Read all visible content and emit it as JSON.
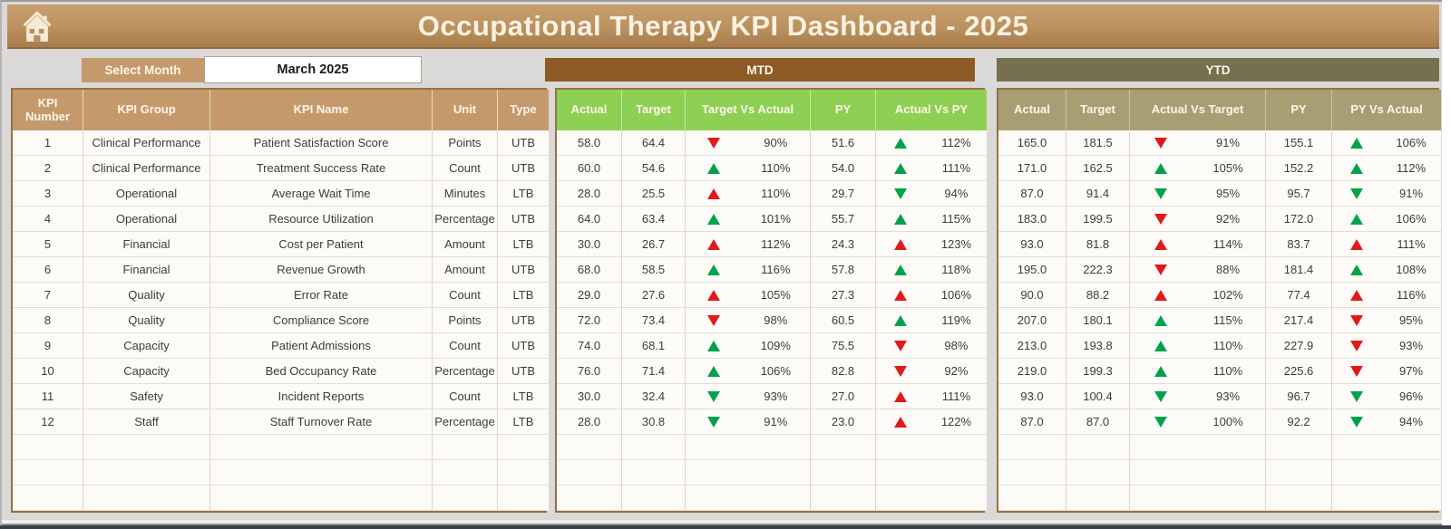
{
  "header": {
    "title": "Occupational Therapy KPI Dashboard - 2025"
  },
  "month_selector": {
    "label": "Select Month",
    "value": "March 2025"
  },
  "sections": {
    "mtd": "MTD",
    "ytd": "YTD"
  },
  "kpi_table_headers": [
    "KPI Number",
    "KPI Group",
    "KPI Name",
    "Unit",
    "Type"
  ],
  "mtd_table_headers": [
    "Actual",
    "Target",
    "Target Vs Actual",
    "PY",
    "Actual Vs PY"
  ],
  "ytd_table_headers": [
    "Actual",
    "Target",
    "Actual Vs Target",
    "PY",
    "PY Vs Actual"
  ],
  "empty_row_count": 3,
  "colors": {
    "banner_tan": "#b98f60",
    "header_tan": "#c49a6c",
    "mtd_brown": "#8d5a26",
    "mtd_green": "#8ed054",
    "ytd_olive_dark": "#75704e",
    "ytd_khaki": "#a89e74",
    "indicator_green": "#00a24b",
    "indicator_red": "#e01a1a",
    "page_gray": "#dbd9d7"
  },
  "rows": [
    {
      "number": "1",
      "group": "Clinical Performance",
      "name": "Patient Satisfaction Score",
      "unit": "Points",
      "type": "UTB",
      "mtd": {
        "actual": "58.0",
        "target": "64.4",
        "target_vs_actual": {
          "dir": "down",
          "color": "red",
          "value": "90%"
        },
        "py": "51.6",
        "actual_vs_py": {
          "dir": "up",
          "color": "green",
          "value": "112%"
        }
      },
      "ytd": {
        "actual": "165.0",
        "target": "181.5",
        "actual_vs_target": {
          "dir": "down",
          "color": "red",
          "value": "91%"
        },
        "py": "155.1",
        "py_vs_actual": {
          "dir": "up",
          "color": "green",
          "value": "106%"
        }
      }
    },
    {
      "number": "2",
      "group": "Clinical Performance",
      "name": "Treatment Success Rate",
      "unit": "Count",
      "type": "UTB",
      "mtd": {
        "actual": "60.0",
        "target": "54.6",
        "target_vs_actual": {
          "dir": "up",
          "color": "green",
          "value": "110%"
        },
        "py": "54.0",
        "actual_vs_py": {
          "dir": "up",
          "color": "green",
          "value": "111%"
        }
      },
      "ytd": {
        "actual": "171.0",
        "target": "162.5",
        "actual_vs_target": {
          "dir": "up",
          "color": "green",
          "value": "105%"
        },
        "py": "152.2",
        "py_vs_actual": {
          "dir": "up",
          "color": "green",
          "value": "112%"
        }
      }
    },
    {
      "number": "3",
      "group": "Operational",
      "name": "Average Wait Time",
      "unit": "Minutes",
      "type": "LTB",
      "mtd": {
        "actual": "28.0",
        "target": "25.5",
        "target_vs_actual": {
          "dir": "up",
          "color": "red",
          "value": "110%"
        },
        "py": "29.7",
        "actual_vs_py": {
          "dir": "down",
          "color": "green",
          "value": "94%"
        }
      },
      "ytd": {
        "actual": "87.0",
        "target": "91.4",
        "actual_vs_target": {
          "dir": "down",
          "color": "green",
          "value": "95%"
        },
        "py": "95.7",
        "py_vs_actual": {
          "dir": "down",
          "color": "green",
          "value": "91%"
        }
      }
    },
    {
      "number": "4",
      "group": "Operational",
      "name": "Resource Utilization",
      "unit": "Percentage",
      "type": "UTB",
      "mtd": {
        "actual": "64.0",
        "target": "63.4",
        "target_vs_actual": {
          "dir": "up",
          "color": "green",
          "value": "101%"
        },
        "py": "55.7",
        "actual_vs_py": {
          "dir": "up",
          "color": "green",
          "value": "115%"
        }
      },
      "ytd": {
        "actual": "183.0",
        "target": "199.5",
        "actual_vs_target": {
          "dir": "down",
          "color": "red",
          "value": "92%"
        },
        "py": "172.0",
        "py_vs_actual": {
          "dir": "up",
          "color": "green",
          "value": "106%"
        }
      }
    },
    {
      "number": "5",
      "group": "Financial",
      "name": "Cost per Patient",
      "unit": "Amount",
      "type": "LTB",
      "mtd": {
        "actual": "30.0",
        "target": "26.7",
        "target_vs_actual": {
          "dir": "up",
          "color": "red",
          "value": "112%"
        },
        "py": "24.3",
        "actual_vs_py": {
          "dir": "up",
          "color": "red",
          "value": "123%"
        }
      },
      "ytd": {
        "actual": "93.0",
        "target": "81.8",
        "actual_vs_target": {
          "dir": "up",
          "color": "red",
          "value": "114%"
        },
        "py": "83.7",
        "py_vs_actual": {
          "dir": "up",
          "color": "red",
          "value": "111%"
        }
      }
    },
    {
      "number": "6",
      "group": "Financial",
      "name": "Revenue Growth",
      "unit": "Amount",
      "type": "UTB",
      "mtd": {
        "actual": "68.0",
        "target": "58.5",
        "target_vs_actual": {
          "dir": "up",
          "color": "green",
          "value": "116%"
        },
        "py": "57.8",
        "actual_vs_py": {
          "dir": "up",
          "color": "green",
          "value": "118%"
        }
      },
      "ytd": {
        "actual": "195.0",
        "target": "222.3",
        "actual_vs_target": {
          "dir": "down",
          "color": "red",
          "value": "88%"
        },
        "py": "181.4",
        "py_vs_actual": {
          "dir": "up",
          "color": "green",
          "value": "108%"
        }
      }
    },
    {
      "number": "7",
      "group": "Quality",
      "name": "Error Rate",
      "unit": "Count",
      "type": "LTB",
      "mtd": {
        "actual": "29.0",
        "target": "27.6",
        "target_vs_actual": {
          "dir": "up",
          "color": "red",
          "value": "105%"
        },
        "py": "27.3",
        "actual_vs_py": {
          "dir": "up",
          "color": "red",
          "value": "106%"
        }
      },
      "ytd": {
        "actual": "90.0",
        "target": "88.2",
        "actual_vs_target": {
          "dir": "up",
          "color": "red",
          "value": "102%"
        },
        "py": "77.4",
        "py_vs_actual": {
          "dir": "up",
          "color": "red",
          "value": "116%"
        }
      }
    },
    {
      "number": "8",
      "group": "Quality",
      "name": "Compliance Score",
      "unit": "Points",
      "type": "UTB",
      "mtd": {
        "actual": "72.0",
        "target": "73.4",
        "target_vs_actual": {
          "dir": "down",
          "color": "red",
          "value": "98%"
        },
        "py": "60.5",
        "actual_vs_py": {
          "dir": "up",
          "color": "green",
          "value": "119%"
        }
      },
      "ytd": {
        "actual": "207.0",
        "target": "180.1",
        "actual_vs_target": {
          "dir": "up",
          "color": "green",
          "value": "115%"
        },
        "py": "217.4",
        "py_vs_actual": {
          "dir": "down",
          "color": "red",
          "value": "95%"
        }
      }
    },
    {
      "number": "9",
      "group": "Capacity",
      "name": "Patient Admissions",
      "unit": "Count",
      "type": "UTB",
      "mtd": {
        "actual": "74.0",
        "target": "68.1",
        "target_vs_actual": {
          "dir": "up",
          "color": "green",
          "value": "109%"
        },
        "py": "75.5",
        "actual_vs_py": {
          "dir": "down",
          "color": "red",
          "value": "98%"
        }
      },
      "ytd": {
        "actual": "213.0",
        "target": "193.8",
        "actual_vs_target": {
          "dir": "up",
          "color": "green",
          "value": "110%"
        },
        "py": "227.9",
        "py_vs_actual": {
          "dir": "down",
          "color": "red",
          "value": "93%"
        }
      }
    },
    {
      "number": "10",
      "group": "Capacity",
      "name": "Bed Occupancy Rate",
      "unit": "Percentage",
      "type": "UTB",
      "mtd": {
        "actual": "76.0",
        "target": "71.4",
        "target_vs_actual": {
          "dir": "up",
          "color": "green",
          "value": "106%"
        },
        "py": "82.8",
        "actual_vs_py": {
          "dir": "down",
          "color": "red",
          "value": "92%"
        }
      },
      "ytd": {
        "actual": "219.0",
        "target": "199.3",
        "actual_vs_target": {
          "dir": "up",
          "color": "green",
          "value": "110%"
        },
        "py": "225.6",
        "py_vs_actual": {
          "dir": "down",
          "color": "red",
          "value": "97%"
        }
      }
    },
    {
      "number": "11",
      "group": "Safety",
      "name": "Incident Reports",
      "unit": "Count",
      "type": "LTB",
      "mtd": {
        "actual": "30.0",
        "target": "32.4",
        "target_vs_actual": {
          "dir": "down",
          "color": "green",
          "value": "93%"
        },
        "py": "27.0",
        "actual_vs_py": {
          "dir": "up",
          "color": "red",
          "value": "111%"
        }
      },
      "ytd": {
        "actual": "93.0",
        "target": "100.4",
        "actual_vs_target": {
          "dir": "down",
          "color": "green",
          "value": "93%"
        },
        "py": "96.7",
        "py_vs_actual": {
          "dir": "down",
          "color": "green",
          "value": "96%"
        }
      }
    },
    {
      "number": "12",
      "group": "Staff",
      "name": "Staff Turnover Rate",
      "unit": "Percentage",
      "type": "LTB",
      "mtd": {
        "actual": "28.0",
        "target": "30.8",
        "target_vs_actual": {
          "dir": "down",
          "color": "green",
          "value": "91%"
        },
        "py": "23.0",
        "actual_vs_py": {
          "dir": "up",
          "color": "red",
          "value": "122%"
        }
      },
      "ytd": {
        "actual": "87.0",
        "target": "87.0",
        "actual_vs_target": {
          "dir": "down",
          "color": "green",
          "value": "100%"
        },
        "py": "92.2",
        "py_vs_actual": {
          "dir": "down",
          "color": "green",
          "value": "94%"
        }
      }
    }
  ]
}
